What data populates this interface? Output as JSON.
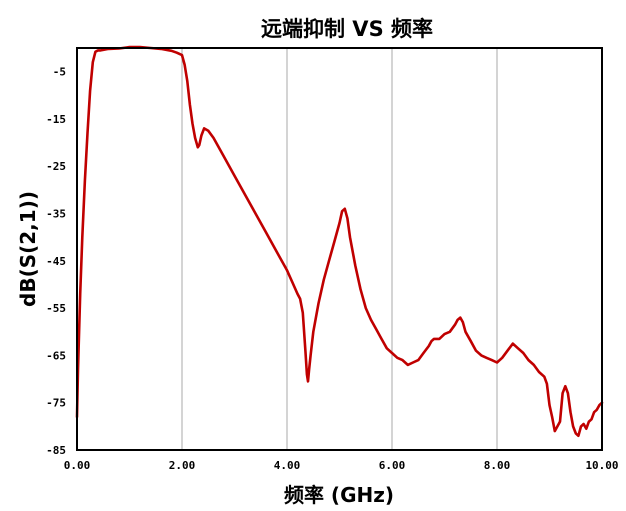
{
  "chart_data": {
    "type": "line",
    "title": "远端抑制 VS 频率",
    "xlabel": "频率 (GHz)",
    "ylabel": "dB(S(2,1))",
    "xlim": [
      0,
      10
    ],
    "ylim": [
      -85,
      0
    ],
    "x_ticks": [
      0,
      2,
      4,
      6,
      8,
      10
    ],
    "x_tick_labels": [
      "0.00",
      "2.00",
      "4.00",
      "6.00",
      "8.00",
      "10.00"
    ],
    "y_ticks": [
      -5,
      -15,
      -25,
      -35,
      -45,
      -55,
      -65,
      -75,
      -85
    ],
    "y_tick_labels": [
      "-5",
      "-15",
      "-25",
      "-35",
      "-45",
      "-55",
      "-65",
      "-75",
      "-85"
    ],
    "grid": true,
    "legend": "none",
    "series": [
      {
        "color": "#c00000",
        "x": [
          0.0,
          0.02,
          0.06,
          0.1,
          0.15,
          0.2,
          0.25,
          0.3,
          0.35,
          0.4,
          0.45,
          0.5,
          0.6,
          0.8,
          1.0,
          1.2,
          1.4,
          1.6,
          1.8,
          1.9,
          2.0,
          2.05,
          2.1,
          2.15,
          2.2,
          2.25,
          2.3,
          2.33,
          2.37,
          2.42,
          2.5,
          2.6,
          2.8,
          3.0,
          3.2,
          3.4,
          3.6,
          3.8,
          4.0,
          4.1,
          4.2,
          4.25,
          4.3,
          4.35,
          4.38,
          4.4,
          4.42,
          4.45,
          4.5,
          4.6,
          4.7,
          4.8,
          4.9,
          5.0,
          5.05,
          5.1,
          5.15,
          5.2,
          5.3,
          5.4,
          5.5,
          5.6,
          5.7,
          5.8,
          5.9,
          6.0,
          6.1,
          6.2,
          6.3,
          6.4,
          6.5,
          6.6,
          6.7,
          6.75,
          6.8,
          6.9,
          7.0,
          7.1,
          7.2,
          7.25,
          7.3,
          7.35,
          7.4,
          7.5,
          7.6,
          7.7,
          7.8,
          7.9,
          8.0,
          8.1,
          8.2,
          8.3,
          8.4,
          8.5,
          8.6,
          8.7,
          8.8,
          8.9,
          8.95,
          9.0,
          9.05,
          9.1,
          9.15,
          9.2,
          9.25,
          9.3,
          9.35,
          9.4,
          9.45,
          9.5,
          9.55,
          9.6,
          9.65,
          9.7,
          9.75,
          9.8,
          9.85,
          9.9,
          9.95,
          10.0
        ],
        "y": [
          -78,
          -68,
          -52,
          -40,
          -28,
          -18,
          -9,
          -3,
          -0.8,
          -0.5,
          -0.5,
          -0.4,
          -0.2,
          -0.1,
          0.2,
          0.2,
          0.0,
          -0.2,
          -0.6,
          -1.0,
          -1.5,
          -3.5,
          -7,
          -12,
          -16,
          -19,
          -21,
          -20.5,
          -18.5,
          -17,
          -17.5,
          -19,
          -23,
          -27,
          -31,
          -35,
          -39,
          -43,
          -47,
          -49.5,
          -52,
          -53,
          -56,
          -64,
          -69,
          -70.5,
          -68,
          -65,
          -60,
          -54,
          -49,
          -45,
          -41,
          -37,
          -34.5,
          -34,
          -36,
          -40,
          -46,
          -51,
          -55,
          -57.5,
          -59.5,
          -61.5,
          -63.5,
          -64.5,
          -65.5,
          -66,
          -67,
          -66.5,
          -66,
          -64.5,
          -63,
          -62,
          -61.5,
          -61.5,
          -60.5,
          -60,
          -58.5,
          -57.5,
          -57,
          -58,
          -60,
          -62,
          -64,
          -65,
          -65.5,
          -66,
          -66.5,
          -65.5,
          -64,
          -62.5,
          -63.5,
          -64.5,
          -66,
          -67,
          -68.5,
          -69.5,
          -71,
          -75.5,
          -78,
          -81,
          -80,
          -79,
          -73,
          -71.5,
          -73,
          -77,
          -80,
          -81.5,
          -82,
          -80,
          -79.5,
          -80.5,
          -79,
          -78.5,
          -77,
          -76.5,
          -75.5,
          -75
        ]
      }
    ]
  }
}
